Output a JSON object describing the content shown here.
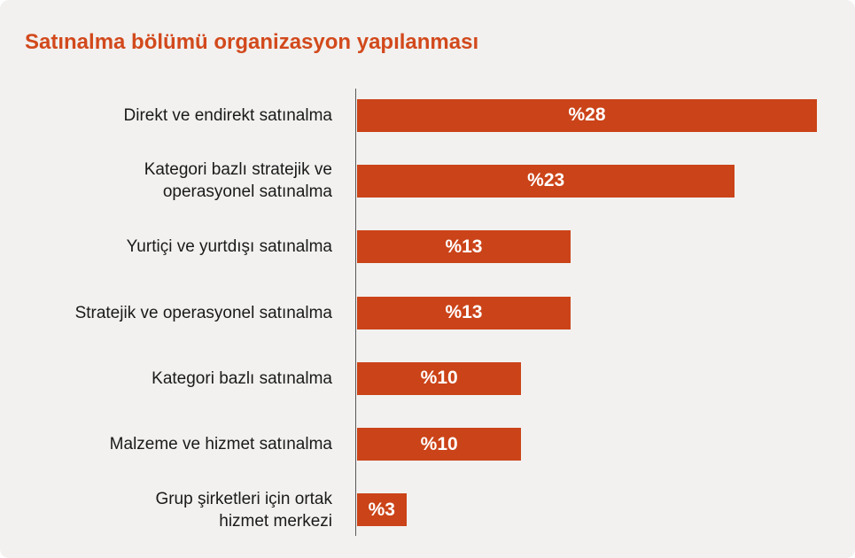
{
  "title": "Satınalma bölümü organizasyon yapılanması",
  "colors": {
    "background": "#f2f1ef",
    "title": "#d2491c",
    "bar": "#cb4318",
    "bar_value_text": "#ffffff",
    "category_label": "#1a1a1a",
    "axis_line": "#59595b"
  },
  "chart_data": {
    "type": "bar",
    "orientation": "horizontal",
    "title": "Satınalma bölümü organizasyon yapılanması",
    "xlabel": "",
    "ylabel": "",
    "xlim": [
      0,
      28
    ],
    "grid": false,
    "legend": false,
    "categories": [
      "Direkt ve endirekt satınalma",
      "Kategori bazlı stratejik ve operasyonel satınalma",
      "Yurtiçi ve yurtdışı satınalma",
      "Stratejik ve operasyonel satınalma",
      "Kategori bazlı satınalma",
      "Malzeme ve hizmet satınalma",
      "Grup şirketleri için ortak hizmet merkezi"
    ],
    "category_label_lines": [
      [
        "Direkt ve endirekt satınalma"
      ],
      [
        "Kategori bazlı stratejik ve",
        "operasyonel satınalma"
      ],
      [
        "Yurtiçi ve yurtdışı satınalma"
      ],
      [
        "Stratejik ve operasyonel satınalma"
      ],
      [
        "Kategori bazlı satınalma"
      ],
      [
        "Malzeme ve hizmet satınalma"
      ],
      [
        "Grup şirketleri için ortak",
        "hizmet merkezi"
      ]
    ],
    "values": [
      28,
      23,
      13,
      13,
      10,
      10,
      3
    ],
    "value_labels": [
      "%28",
      "%23",
      "%13",
      "%13",
      "%10",
      "%10",
      "%3"
    ]
  }
}
